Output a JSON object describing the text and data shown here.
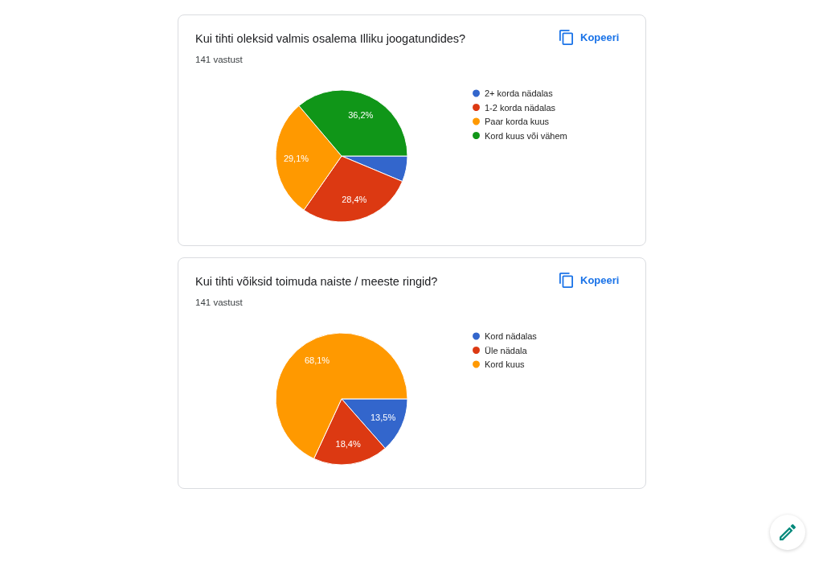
{
  "chart_data": [
    {
      "type": "pie",
      "title": "Kui tihti oleksid valmis osalema Illiku joogatundides?",
      "subtitle": "141 vastust",
      "categories": [
        "2+ korda nädalas",
        "1-2 korda nädalas",
        "Paar korda kuus",
        "Kord kuus või vähem"
      ],
      "values": [
        6.3,
        28.4,
        29.1,
        36.2
      ],
      "colors": [
        "#3366cc",
        "#dc3912",
        "#ff9900",
        "#109618"
      ],
      "value_labels": [
        null,
        "28,4%",
        "29,1%",
        "36,2%"
      ],
      "legend": "right",
      "annotations": [
        "Kopeeri"
      ]
    },
    {
      "type": "pie",
      "title": "Kui tihti võiksid toimuda naiste / meeste ringid?",
      "subtitle": "141 vastust",
      "categories": [
        "Kord nädalas",
        "Üle nädala",
        "Kord kuus"
      ],
      "values": [
        13.5,
        18.4,
        68.1
      ],
      "colors": [
        "#3366cc",
        "#dc3912",
        "#ff9900"
      ],
      "value_labels": [
        "13,5%",
        "18,4%",
        "68,1%"
      ],
      "legend": "right",
      "annotations": [
        "Kopeeri"
      ]
    }
  ]
}
